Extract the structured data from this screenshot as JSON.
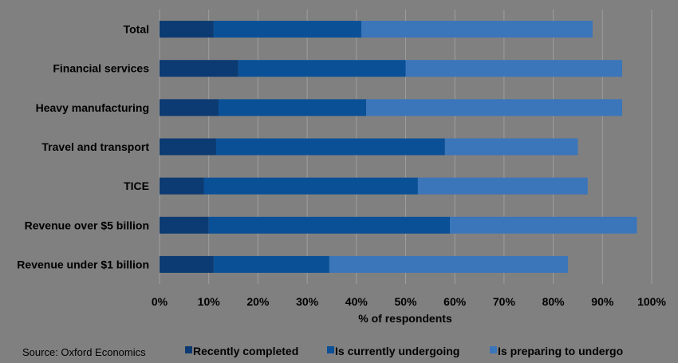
{
  "chart_data": {
    "type": "bar",
    "orientation": "horizontal",
    "stacked": true,
    "categories": [
      "Total",
      "Financial services",
      "Heavy manufacturing",
      "Travel and transport",
      "TICE",
      "Revenue over $5 billion",
      "Revenue under $1 billion"
    ],
    "series": [
      {
        "name": "Recently completed",
        "color": "#0c3a72",
        "values": [
          11,
          16,
          12,
          11.5,
          9,
          10,
          11
        ]
      },
      {
        "name": "Is currently undergoing",
        "color": "#0a5097",
        "values": [
          30,
          34,
          30,
          46.5,
          43.5,
          49,
          23.5
        ]
      },
      {
        "name": "Is preparing to undergo",
        "color": "#3b75ba",
        "values": [
          47,
          44,
          52,
          27,
          34.5,
          38,
          48.5
        ]
      }
    ],
    "xlabel": "% of respondents",
    "xlim": [
      0,
      100
    ],
    "x_tick_labels": [
      "0%",
      "10%",
      "20%",
      "30%",
      "40%",
      "50%",
      "60%",
      "70%",
      "80%",
      "90%",
      "100%"
    ],
    "grid": true,
    "legend_position": "bottom",
    "source": "Source: Oxford Economics"
  }
}
